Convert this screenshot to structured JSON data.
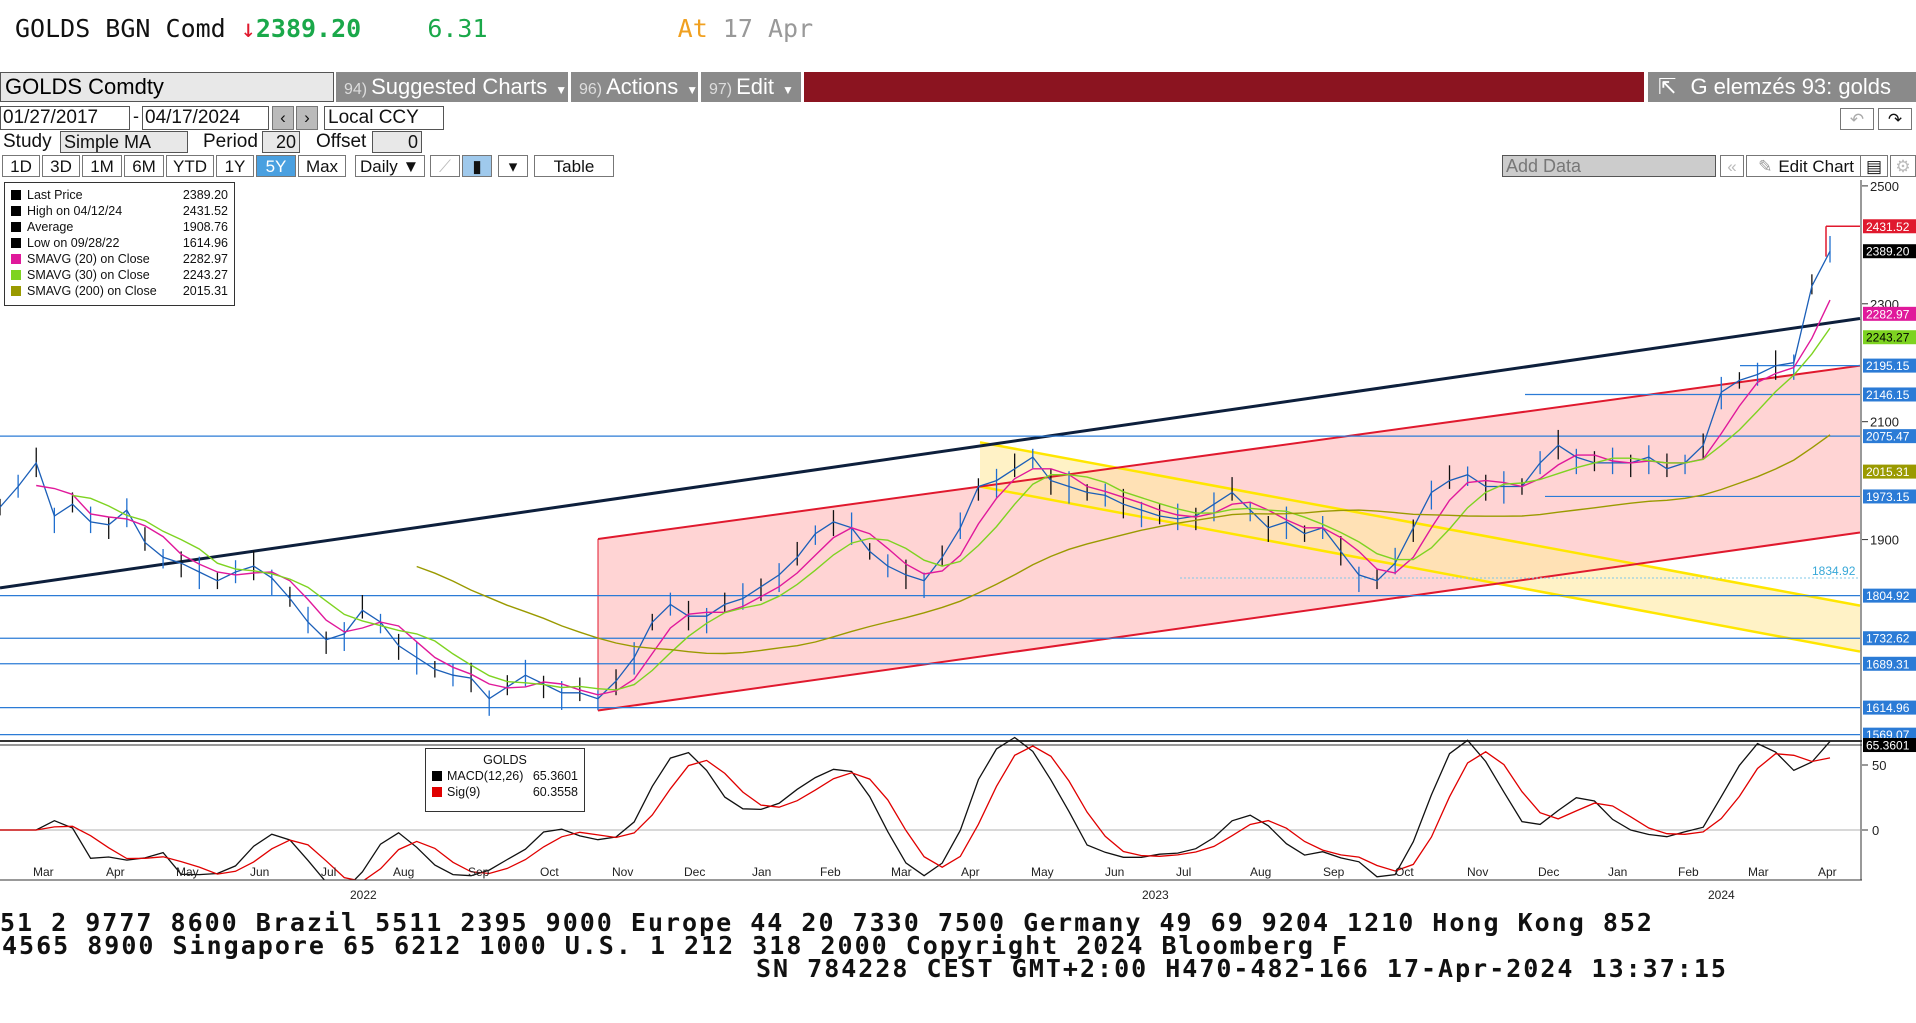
{
  "header": {
    "ticker": "GOLDS BGN Comd",
    "arrow": "↓",
    "price": "2389.20",
    "change": "6.31",
    "at_label": "At",
    "at_date": "17 Apr"
  },
  "toolbar": {
    "security": "GOLDS Comdty",
    "suggested_num": "94)",
    "suggested": "Suggested Charts",
    "actions_num": "96)",
    "actions": "Actions",
    "edit_num": "97)",
    "edit": "Edit",
    "analysis": "G elemzés 93: golds"
  },
  "range": {
    "start": "01/27/2017",
    "end": "04/17/2024",
    "currency": "Local CCY"
  },
  "study": {
    "label": "Study",
    "type": "Simple MA",
    "period_label": "Period",
    "period": "20",
    "offset_label": "Offset",
    "offset": "0"
  },
  "periods": {
    "buttons": [
      "1D",
      "3D",
      "1M",
      "6M",
      "YTD",
      "1Y",
      "5Y",
      "Max"
    ],
    "selected": "5Y",
    "frequency": "Daily ▼",
    "table": "Table",
    "add_data": "Add Data",
    "edit_chart": "Edit Chart"
  },
  "legend": [
    {
      "label": "Last Price",
      "value": "2389.20",
      "color": "#000000"
    },
    {
      "label": "High on 04/12/24",
      "value": "2431.52",
      "color": "#000000"
    },
    {
      "label": "Average",
      "value": "1908.76",
      "color": "#000000"
    },
    {
      "label": "Low on 09/28/22",
      "value": "1614.96",
      "color": "#000000"
    },
    {
      "label": "SMAVG (20)  on Close",
      "value": "2282.97",
      "color": "#e0199b"
    },
    {
      "label": "SMAVG (30)  on Close",
      "value": "2243.27",
      "color": "#7ed321"
    },
    {
      "label": "SMAVG (200)  on Close",
      "value": "2015.31",
      "color": "#9a9a00"
    }
  ],
  "macd_legend": {
    "title": "GOLDS",
    "rows": [
      {
        "label": "MACD(12,26)",
        "value": "65.3601",
        "color": "#000000"
      },
      {
        "label": "Sig(9)",
        "value": "60.3558",
        "color": "#e00000"
      }
    ]
  },
  "chart_data": {
    "type": "line",
    "title": "",
    "ylim": [
      1560,
      2510
    ],
    "yticks": [
      "2500",
      "2300",
      "2100",
      "1900"
    ],
    "macd_ticks": [
      "50",
      "0"
    ],
    "months": [
      "Mar",
      "Apr",
      "May",
      "Jun",
      "Jul",
      "Aug",
      "Sep",
      "Oct",
      "Nov",
      "Dec",
      "Jan",
      "Feb",
      "Mar",
      "Apr",
      "May",
      "Jun",
      "Jul",
      "Aug",
      "Sep",
      "Oct",
      "Nov",
      "Dec",
      "Jan",
      "Feb",
      "Mar",
      "Apr"
    ],
    "years": [
      "2022",
      "2023",
      "2024"
    ],
    "price_labels": [
      {
        "text": "2431.52",
        "value": 2431.52,
        "bg": "#e0192e",
        "fg": "#ffffff"
      },
      {
        "text": "2389.20",
        "value": 2389.2,
        "bg": "#000000",
        "fg": "#ffffff"
      },
      {
        "text": "2282.97",
        "value": 2282.97,
        "bg": "#e0199b",
        "fg": "#ffffff"
      },
      {
        "text": "2243.27",
        "value": 2243.27,
        "bg": "#7ed321",
        "fg": "#000000"
      },
      {
        "text": "2195.15",
        "value": 2195.15,
        "bg": "#2b7bd6",
        "fg": "#ffffff"
      },
      {
        "text": "2146.15",
        "value": 2146.15,
        "bg": "#2b7bd6",
        "fg": "#ffffff"
      },
      {
        "text": "2075.47",
        "value": 2075.47,
        "bg": "#2b7bd6",
        "fg": "#ffffff"
      },
      {
        "text": "2015.31",
        "value": 2015.31,
        "bg": "#9a9a00",
        "fg": "#ffffff"
      },
      {
        "text": "1973.15",
        "value": 1973.15,
        "bg": "#2b7bd6",
        "fg": "#ffffff"
      },
      {
        "text": "1804.92",
        "value": 1804.92,
        "bg": "#2b7bd6",
        "fg": "#ffffff"
      },
      {
        "text": "1732.62",
        "value": 1732.62,
        "bg": "#2b7bd6",
        "fg": "#ffffff"
      },
      {
        "text": "1689.31",
        "value": 1689.31,
        "bg": "#2b7bd6",
        "fg": "#ffffff"
      },
      {
        "text": "1614.96",
        "value": 1614.96,
        "bg": "#2b7bd6",
        "fg": "#ffffff"
      },
      {
        "text": "1569.07",
        "value": 1569.07,
        "bg": "#2b7bd6",
        "fg": "#ffffff"
      }
    ],
    "level_1834": "1834.92",
    "macd_value_label": "65.3601",
    "close": [
      1955,
      1990,
      2030,
      1940,
      1960,
      1930,
      1925,
      1950,
      1895,
      1870,
      1860,
      1845,
      1830,
      1845,
      1855,
      1835,
      1800,
      1760,
      1730,
      1740,
      1780,
      1760,
      1720,
      1700,
      1680,
      1670,
      1665,
      1630,
      1650,
      1670,
      1655,
      1640,
      1640,
      1630,
      1660,
      1700,
      1760,
      1790,
      1770,
      1770,
      1790,
      1800,
      1820,
      1840,
      1870,
      1910,
      1930,
      1920,
      1880,
      1855,
      1840,
      1830,
      1870,
      1920,
      1990,
      2000,
      2020,
      2040,
      2000,
      1990,
      1980,
      1975,
      1960,
      1950,
      1940,
      1935,
      1940,
      1960,
      1980,
      1950,
      1920,
      1930,
      1910,
      1920,
      1880,
      1840,
      1830,
      1860,
      1920,
      1980,
      2000,
      2010,
      1990,
      1990,
      1990,
      2030,
      2060,
      2040,
      2030,
      2030,
      2030,
      2040,
      2020,
      2030,
      2060,
      2150,
      2170,
      2180,
      2195,
      2200,
      2330,
      2389
    ]
  },
  "ticker": {
    "line1": "51 2 9777 8600 Brazil 5511 2395 9000 Europe 44 20 7330 7500 Germany 49 69 9204 1210 Hong Kong 852",
    "line2": "4565 8900      Singapore 65 6212 1000      U.S. 1 212 318 2000        Copyright 2024 Bloomberg F",
    "line3": "SN 784228 CEST GMT+2:00 H470-482-166 17-Apr-2024 13:37:15"
  }
}
